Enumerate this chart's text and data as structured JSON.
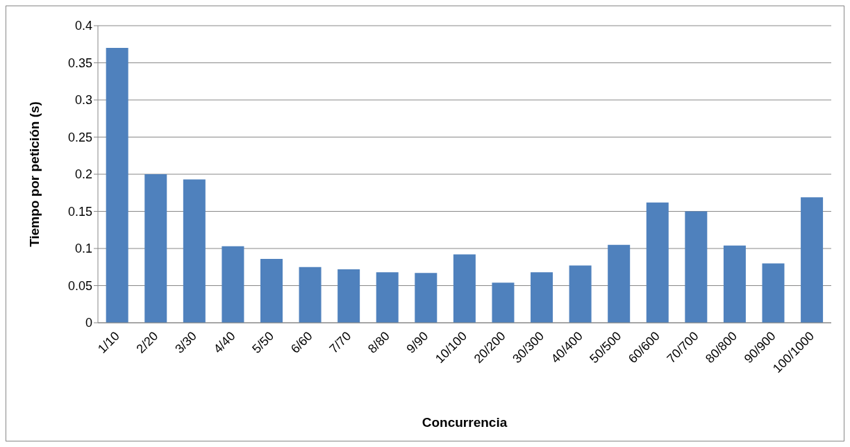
{
  "chart_data": {
    "type": "bar",
    "xlabel": "Concurrencia",
    "ylabel": "Tiempo por petición (s)",
    "categories": [
      "1/10",
      "2/20",
      "3/30",
      "4/40",
      "5/50",
      "6/60",
      "7/70",
      "8/80",
      "9/90",
      "10/100",
      "20/200",
      "30/300",
      "40/400",
      "50/500",
      "60/600",
      "70/700",
      "80/800",
      "90/900",
      "100/1000"
    ],
    "values": [
      0.37,
      0.2,
      0.193,
      0.103,
      0.086,
      0.075,
      0.072,
      0.068,
      0.067,
      0.092,
      0.054,
      0.068,
      0.077,
      0.105,
      0.162,
      0.15,
      0.104,
      0.08,
      0.169
    ],
    "color": "#4f81bd",
    "ylim": [
      0,
      0.4
    ],
    "yticks": [
      0,
      0.05,
      0.1,
      0.15,
      0.2,
      0.25,
      0.3,
      0.35,
      0.4
    ],
    "grid": "y"
  }
}
